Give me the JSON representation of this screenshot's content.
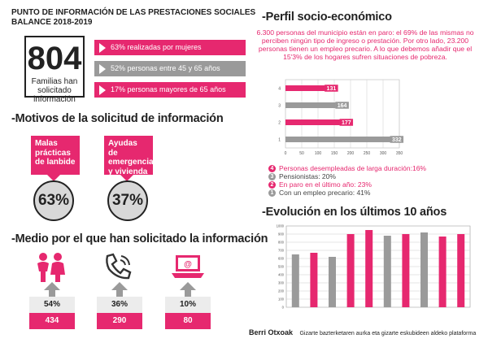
{
  "header": {
    "line1": "PUNTO DE INFORMACIÓN DE LAS PRESTACIONES SOCIALES",
    "line2": "BALANCE 2018-2019"
  },
  "summary": {
    "total": "804",
    "total_label": "Familias han solicitado información",
    "stats": [
      {
        "text": "63% realizadas por mujeres",
        "color": "#e6286f"
      },
      {
        "text": "52% personas entre 45 y 65 años",
        "color": "#9a9a9a"
      },
      {
        "text": "17% personas mayores de 65 años",
        "color": "#e6286f"
      }
    ]
  },
  "motivos": {
    "title": "-Motivos de la solicitud de información",
    "items": [
      {
        "label": "Malas prácticas de lanbide",
        "percent": "63%",
        "color": "#e6286f"
      },
      {
        "label": "Ayudas de emergencia y vivienda",
        "percent": "37%",
        "color": "#e6286f"
      }
    ]
  },
  "medio": {
    "title": "-Medio por el que han solicitado la información",
    "items": [
      {
        "icon": "people-icon",
        "percent": "54%",
        "value": "434"
      },
      {
        "icon": "phone-icon",
        "percent": "36%",
        "value": "290"
      },
      {
        "icon": "laptop-email-icon",
        "percent": "10%",
        "value": "80"
      }
    ]
  },
  "perfil": {
    "title": "-Perfil socio-económico",
    "intro": "6.300 personas del municipio están en paro: el 69% de las mismas no perciben ningún tipo de ingreso o prestación. Por otro lado, 23.200 personas tienen un empleo precario. A lo que debemos añadir que el 15'3% de los hogares sufren situaciones de pobreza.",
    "legend": [
      {
        "num": "4",
        "text": "Personas desempleadas de larga duración:16%",
        "color": "#e6286f"
      },
      {
        "num": "3",
        "text": "Pensionistas: 20%",
        "color": "#9a9a9a"
      },
      {
        "num": "2",
        "text": "En paro en el último año: 23%",
        "color": "#e6286f"
      },
      {
        "num": "1",
        "text": "Con un empleo precario: 41%",
        "color": "#9a9a9a"
      }
    ]
  },
  "evolucion": {
    "title": "-Evolución en los últimos 10 años"
  },
  "footer": {
    "brand": "Berri Otxoak",
    "tagline": "Gizarte bazterketaren aurka eta gizarte eskubideen aldeko plataforma"
  },
  "chart_data": [
    {
      "type": "bar",
      "orientation": "horizontal",
      "categories": [
        "4",
        "3",
        "2",
        "1"
      ],
      "values": [
        131,
        164,
        177,
        332
      ],
      "colors": [
        "#e6286f",
        "#9a9a9a",
        "#e6286f",
        "#9a9a9a"
      ],
      "xlim": [
        0,
        350
      ],
      "xticks": [
        "0",
        "50",
        "100",
        "150",
        "200",
        "250",
        "300",
        "350"
      ],
      "grid": true
    },
    {
      "type": "bar",
      "categories": [
        "1",
        "2",
        "3",
        "4",
        "5",
        "6",
        "7",
        "8",
        "9",
        "10"
      ],
      "values": [
        650,
        670,
        620,
        900,
        950,
        880,
        900,
        920,
        870,
        900
      ],
      "colors": [
        "#9a9a9a",
        "#e6286f",
        "#9a9a9a",
        "#e6286f",
        "#e6286f",
        "#9a9a9a",
        "#e6286f",
        "#9a9a9a",
        "#e6286f",
        "#e6286f"
      ],
      "ylim": [
        0,
        1000
      ],
      "yticks": [
        "0",
        "100",
        "200",
        "300",
        "400",
        "500",
        "600",
        "700",
        "800",
        "900",
        "1000"
      ],
      "grid": true
    }
  ]
}
